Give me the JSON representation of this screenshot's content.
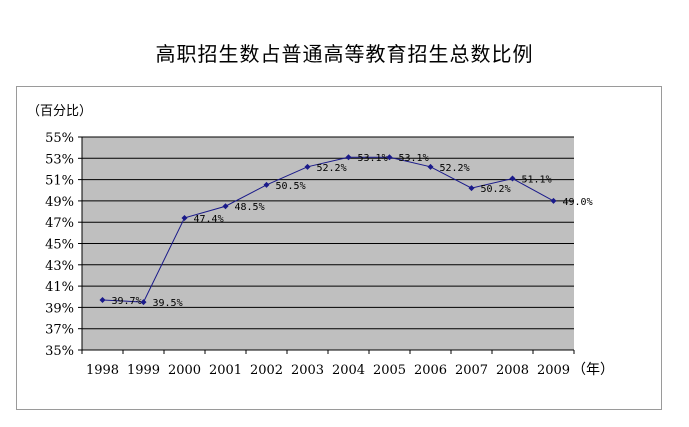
{
  "chart_data": {
    "type": "line",
    "title": "高职招生数占普通高等教育招生总数比例",
    "ylabel": "（百分比）",
    "xlabel": "（年）",
    "categories": [
      "1998",
      "1999",
      "2000",
      "2001",
      "2002",
      "2003",
      "2004",
      "2005",
      "2006",
      "2007",
      "2008",
      "2009"
    ],
    "series": [
      {
        "values": [
          39.7,
          39.5,
          47.4,
          48.5,
          50.5,
          52.2,
          53.1,
          53.1,
          52.2,
          50.2,
          51.1,
          49.0
        ]
      }
    ],
    "data_labels": [
      "39.7%",
      "39.5%",
      "47.4%",
      "48.5%",
      "50.5%",
      "52.2%",
      "53.1%",
      "53.1%",
      "52.2%",
      "50.2%",
      "51.1%",
      "49.0%"
    ],
    "ylim": [
      35,
      55
    ],
    "yticks": [
      "35%",
      "37%",
      "39%",
      "41%",
      "43%",
      "45%",
      "47%",
      "49%",
      "51%",
      "53%",
      "55%"
    ],
    "grid": true,
    "legend": "none",
    "colors": {
      "line": "#1a1a8a",
      "marker": "#1a1a8a",
      "plot_bg": "#bfbfbf",
      "grid": "#000000"
    }
  }
}
